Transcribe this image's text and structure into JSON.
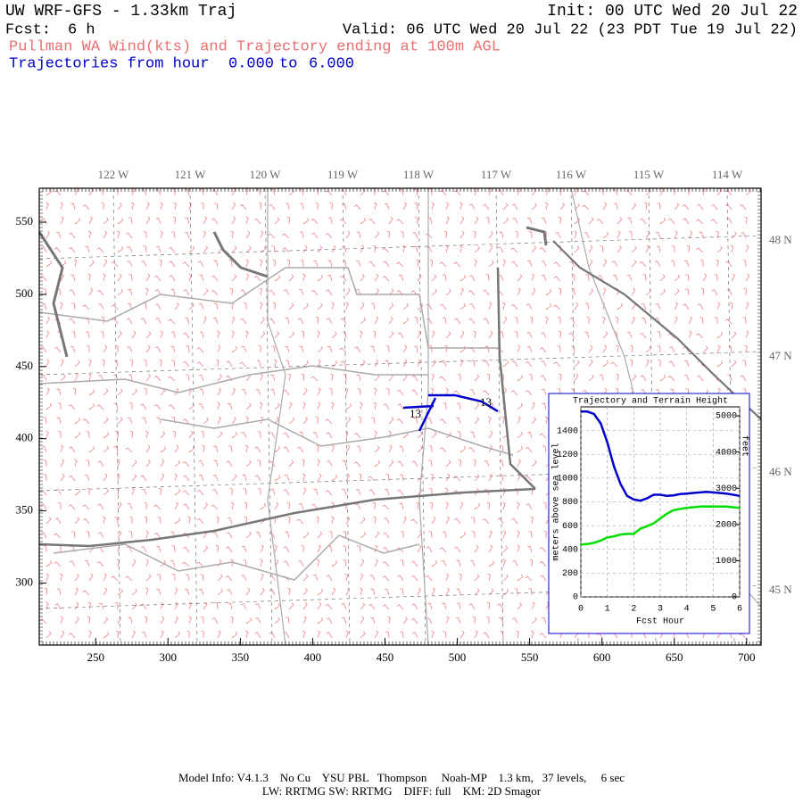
{
  "header": {
    "model": "UW WRF-GFS - 1.33km Traj",
    "init": "Init: 00 UTC Wed 20 Jul 22",
    "fcst_label": "Fcst:",
    "fcst_value": "6 h",
    "valid": "Valid: 06 UTC Wed 20 Jul 22 (23 PDT Tue 19 Jul 22)",
    "subtitle": "Pullman WA Wind(kts) and Trajectory ending at 100m AGL",
    "traj_label": "Trajectories from hour",
    "traj_from": "0.000",
    "traj_word": "to",
    "traj_to": "6.000"
  },
  "map": {
    "xlim": [
      211,
      710
    ],
    "ylim": [
      257,
      573.5
    ],
    "xticks": [
      250,
      300,
      350,
      400,
      450,
      500,
      550,
      600,
      650,
      700
    ],
    "yticks": [
      300,
      350,
      400,
      450,
      500,
      550
    ],
    "lon_labels": [
      "122 W",
      "121 W",
      "120 W",
      "119 W",
      "118 W",
      "117 W",
      "116 W",
      "115 W",
      "114 W"
    ],
    "lat_labels": [
      "48 N",
      "47 N",
      "46 N",
      "45 N"
    ],
    "traj_labels": [
      "13",
      "13"
    ]
  },
  "chart_data": {
    "type": "line",
    "title": "Trajectory and Terrain Height",
    "xlabel": "Fcst Hour",
    "ylabel": "meters above sea level",
    "y2label": "feet",
    "x": [
      0,
      0.25,
      0.5,
      0.75,
      1,
      1.25,
      1.5,
      1.75,
      2,
      2.25,
      2.5,
      2.75,
      3,
      3.25,
      3.5,
      3.75,
      4,
      4.25,
      4.5,
      4.75,
      5,
      5.25,
      5.5,
      5.75,
      6
    ],
    "series": [
      {
        "color": "#0000cc",
        "values": [
          1560,
          1560,
          1540,
          1460,
          1300,
          1100,
          950,
          850,
          820,
          810,
          830,
          860,
          860,
          850,
          855,
          865,
          870,
          875,
          880,
          885,
          880,
          875,
          870,
          860,
          850
        ]
      },
      {
        "color": "#00dd00",
        "values": [
          440,
          445,
          455,
          475,
          500,
          510,
          525,
          530,
          530,
          575,
          595,
          620,
          660,
          700,
          730,
          740,
          750,
          755,
          760,
          762,
          760,
          760,
          760,
          755,
          750
        ]
      }
    ],
    "xlim": [
      0,
      6
    ],
    "ylim": [
      0,
      1600
    ],
    "y2lim": [
      0,
      5249
    ],
    "xticks": [
      0,
      1,
      2,
      3,
      4,
      5,
      6
    ],
    "yticks": [
      0,
      200,
      400,
      600,
      800,
      1000,
      1200,
      1400
    ],
    "y2ticks": [
      0,
      1000,
      2000,
      3000,
      4000,
      5000
    ],
    "grid": true
  },
  "footer": {
    "line1": "Model Info: V4.1.3    No Cu    YSU PBL   Thompson     Noah-MP    1.3 km,   37 levels,     6 sec",
    "line2": "LW: RRTMG SW: RRTMG    DIFF: full    KM: 2D Smagor"
  }
}
